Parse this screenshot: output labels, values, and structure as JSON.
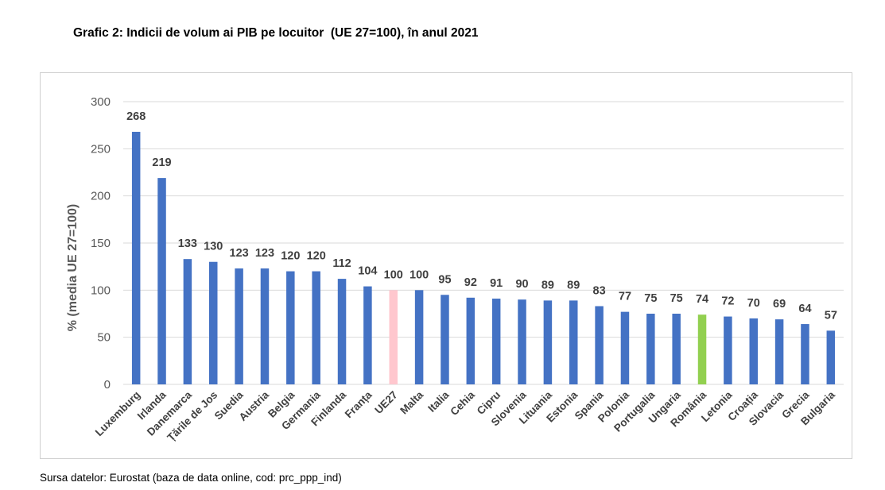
{
  "page": {
    "title": "Grafic 2: Indicii de volum ai PIB pe locuitor  (UE 27=100), în anul 2021",
    "source": "Sursa datelor: Eurostat (baza de data online, cod: prc_ppp_ind)"
  },
  "chart_data": {
    "type": "bar",
    "title": "Grafic 2: Indicii de volum ai PIB pe locuitor  (UE 27=100), în anul 2021",
    "xlabel": "",
    "ylabel": "% (media UE 27=100)",
    "ylim": [
      0,
      300
    ],
    "yticks": [
      0,
      50,
      100,
      150,
      200,
      250,
      300
    ],
    "grid": true,
    "legend": "none",
    "categories": [
      "Luxemburg",
      "Irlanda",
      "Danemarca",
      "Țările de Jos",
      "Suedia",
      "Austria",
      "Belgia",
      "Germania",
      "Finlanda",
      "Franța",
      "UE27",
      "Malta",
      "Italia",
      "Cehia",
      "Cipru",
      "Slovenia",
      "Lituania",
      "Estonia",
      "Spania",
      "Polonia",
      "Portugalia",
      "Ungaria",
      "România",
      "Letonia",
      "Croația",
      "Slovacia",
      "Grecia",
      "Bulgaria"
    ],
    "values": [
      268,
      219,
      133,
      130,
      123,
      123,
      120,
      120,
      112,
      104,
      100,
      100,
      95,
      92,
      91,
      90,
      89,
      89,
      83,
      77,
      75,
      75,
      74,
      72,
      70,
      69,
      64,
      57
    ],
    "colors": {
      "default": "#4472c4",
      "UE27": "#ffc7ce",
      "România": "#92d050"
    }
  }
}
